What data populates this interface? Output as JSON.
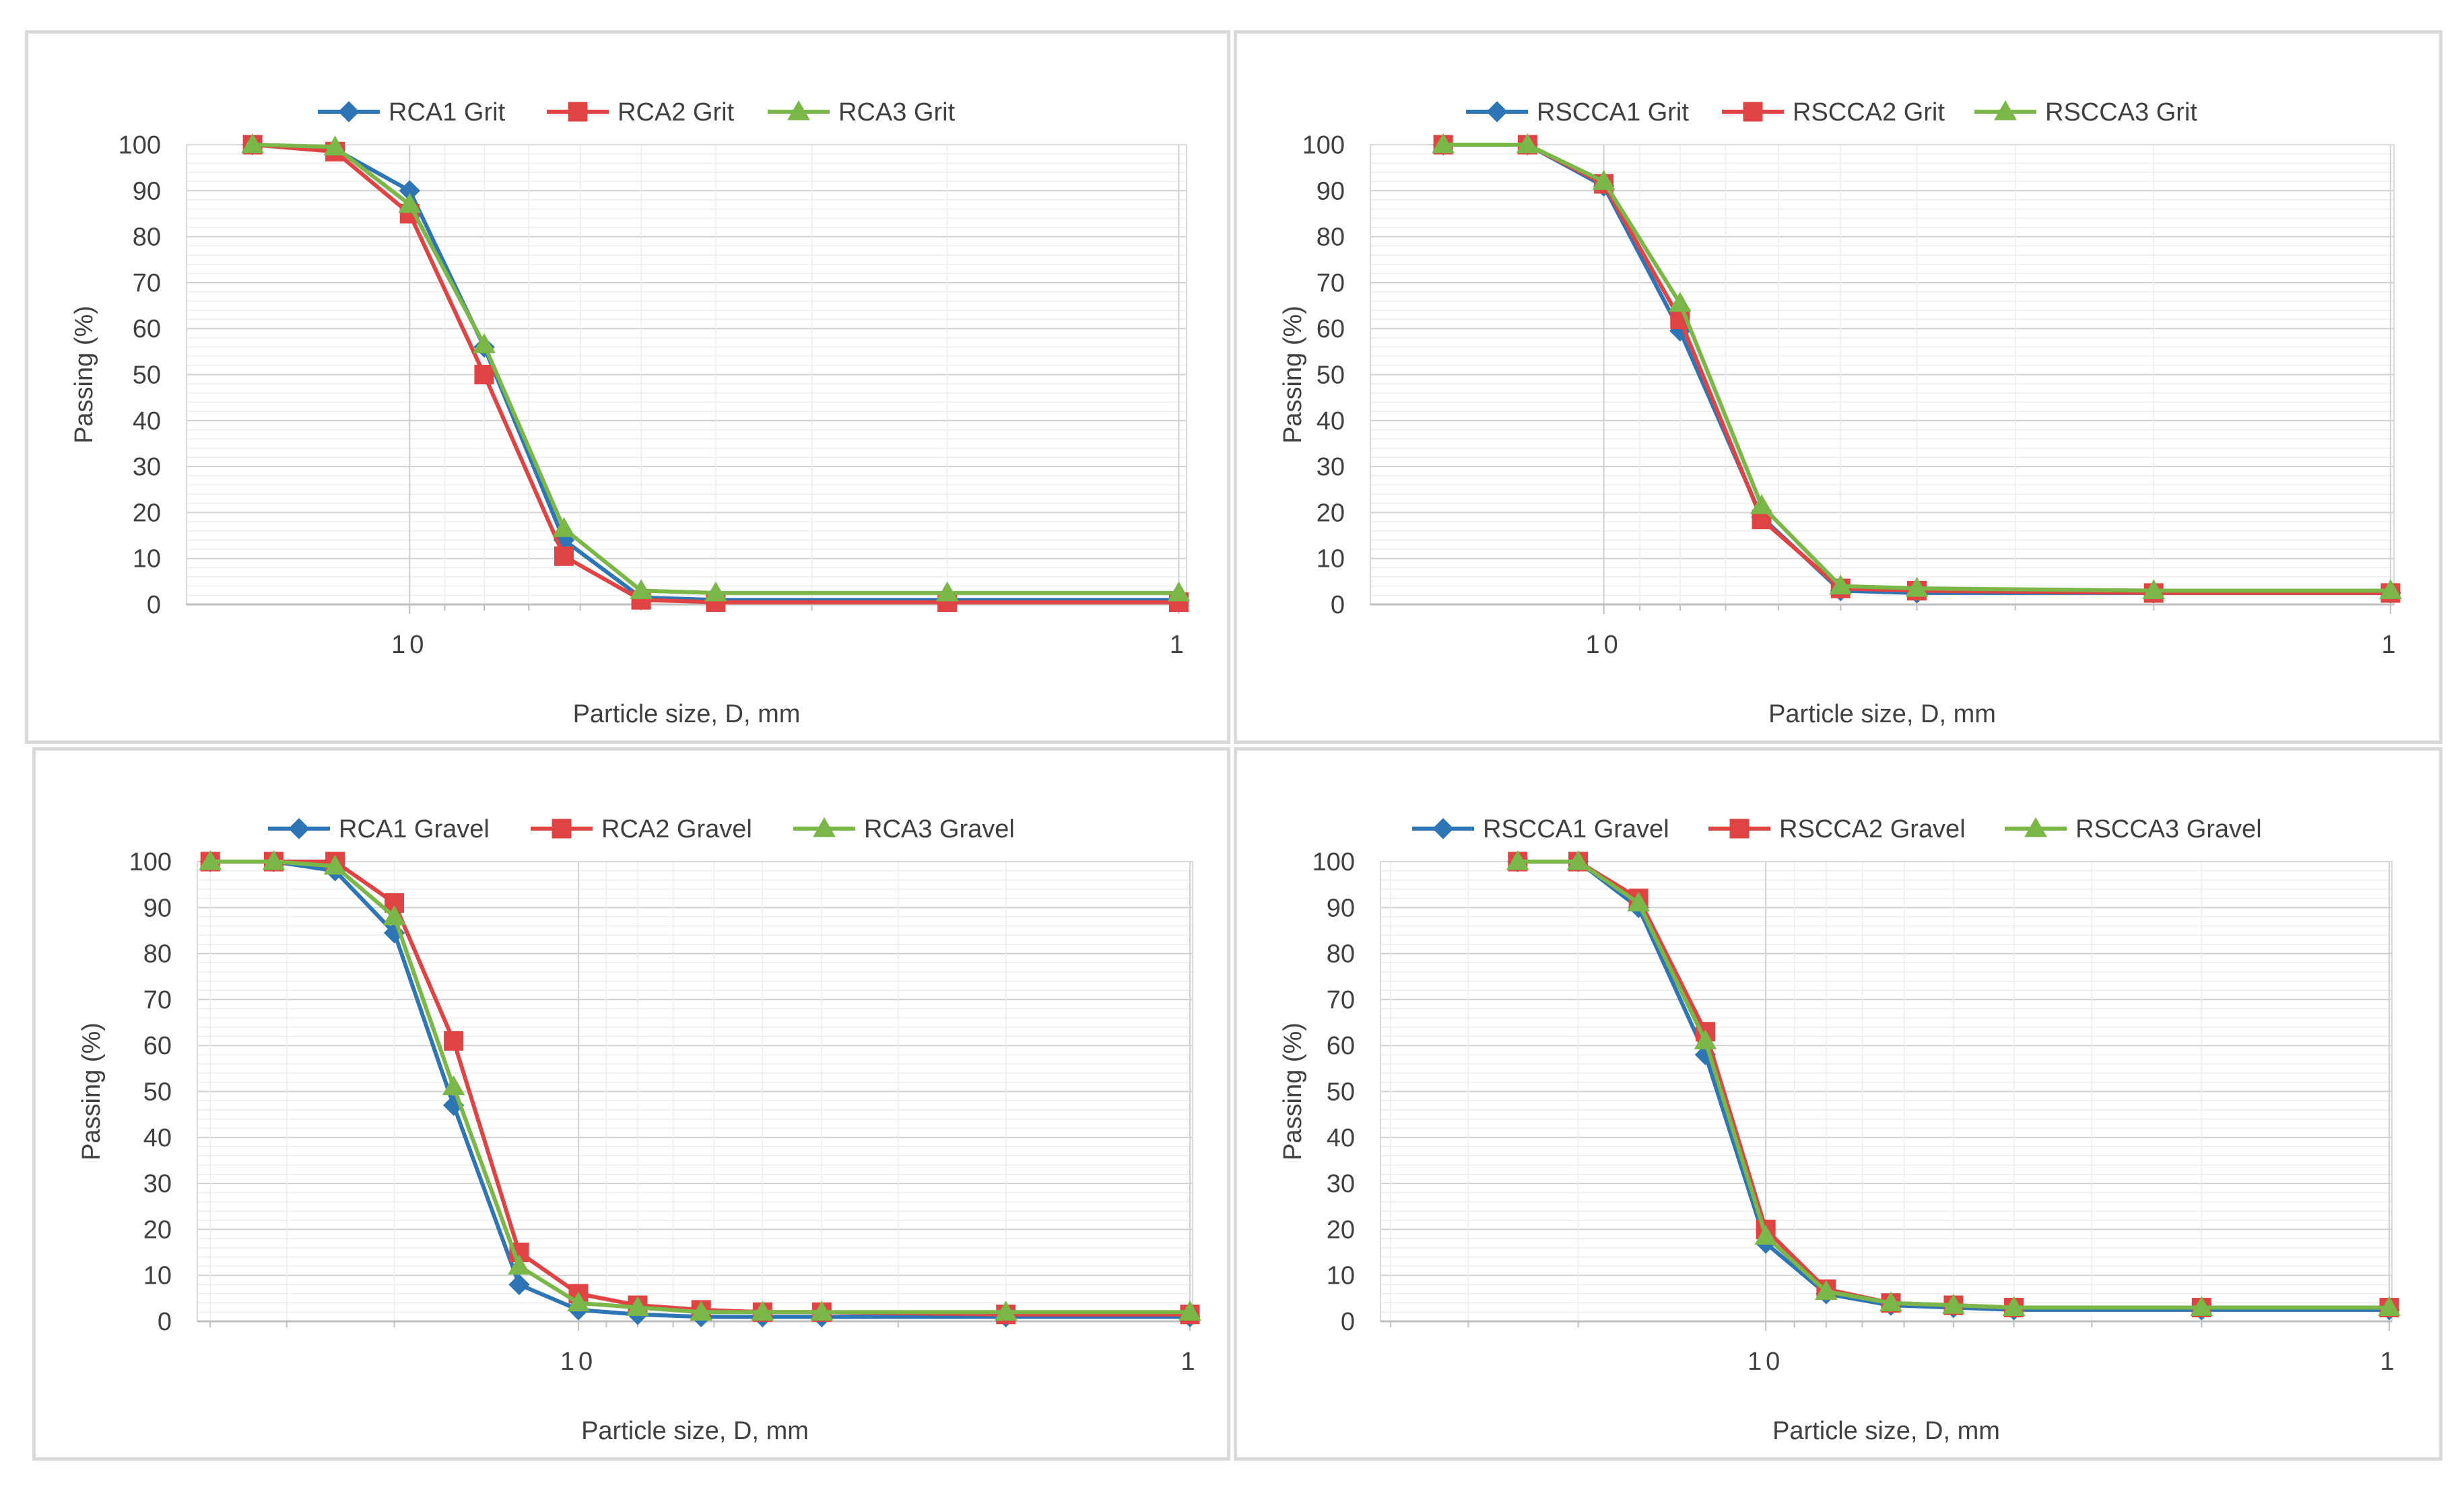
{
  "colors": {
    "series1": "#2E75B6",
    "series2": "#E04343",
    "series3": "#7AB648",
    "grid": "#d9d9d9",
    "axis": "#bfbfbf",
    "text": "#404040"
  },
  "chart_data": [
    {
      "type": "line",
      "xscale": "log",
      "xreversed": true,
      "xlim": [
        0.977,
        19.5
      ],
      "ylim": [
        0,
        100
      ],
      "xlabel": "Particle size, D, mm",
      "ylabel": "Passing (%)",
      "yticks": [
        "0",
        "10",
        "20",
        "30",
        "40",
        "50",
        "60",
        "70",
        "80",
        "90",
        "100"
      ],
      "xticks": [
        {
          "value": 10,
          "label": "10"
        },
        {
          "value": 1,
          "label": "1"
        }
      ],
      "legend_position": "top",
      "series": [
        {
          "name": "RCA1 Grit",
          "marker": "diamond",
          "x": [
            16,
            12.5,
            10,
            8,
            6.3,
            5,
            4,
            2,
            1
          ],
          "y": [
            100,
            99,
            90,
            56,
            14,
            1.5,
            1,
            1,
            1
          ]
        },
        {
          "name": "RCA2 Grit",
          "marker": "square",
          "x": [
            16,
            12.5,
            10,
            8,
            6.3,
            5,
            4,
            2,
            1
          ],
          "y": [
            100,
            98.5,
            85,
            50,
            10.5,
            1,
            0.5,
            0.5,
            0.5
          ]
        },
        {
          "name": "RCA3 Grit",
          "marker": "triangle",
          "x": [
            16,
            12.5,
            10,
            8,
            6.3,
            5,
            4,
            2,
            1
          ],
          "y": [
            100,
            99.5,
            87,
            56.5,
            16.5,
            3,
            2.5,
            2.5,
            2.5
          ]
        }
      ]
    },
    {
      "type": "line",
      "xscale": "log",
      "xreversed": true,
      "xlim": [
        0.99,
        19.8
      ],
      "ylim": [
        0,
        100
      ],
      "xlabel": "Particle size, D, mm",
      "ylabel": "Passing (%)",
      "yticks": [
        "0",
        "10",
        "20",
        "30",
        "40",
        "50",
        "60",
        "70",
        "80",
        "90",
        "100"
      ],
      "xticks": [
        {
          "value": 10,
          "label": "10"
        },
        {
          "value": 1,
          "label": "1"
        }
      ],
      "legend_position": "top",
      "series": [
        {
          "name": "RSCCA1 Grit",
          "marker": "diamond",
          "x": [
            16,
            12.5,
            10,
            8,
            6.3,
            5,
            4,
            2,
            1
          ],
          "y": [
            100,
            100,
            91,
            59.5,
            19,
            3,
            2.5,
            2.5,
            2.5
          ]
        },
        {
          "name": "RSCCA2 Grit",
          "marker": "square",
          "x": [
            16,
            12.5,
            10,
            8,
            6.3,
            5,
            4,
            2,
            1
          ],
          "y": [
            100,
            100,
            91.5,
            62,
            18.5,
            3.5,
            3,
            2.5,
            2.5
          ]
        },
        {
          "name": "RSCCA3 Grit",
          "marker": "triangle",
          "x": [
            16,
            12.5,
            10,
            8,
            6.3,
            5,
            4,
            2,
            1
          ],
          "y": [
            100,
            100,
            92,
            65.5,
            21.5,
            4,
            3.5,
            3,
            3
          ]
        }
      ]
    },
    {
      "type": "line",
      "xscale": "log",
      "xreversed": true,
      "xlim": [
        0.99,
        42
      ],
      "ylim": [
        0,
        100
      ],
      "xlabel": "Particle size, D, mm",
      "ylabel": "Passing (%)",
      "yticks": [
        "0",
        "10",
        "20",
        "30",
        "40",
        "50",
        "60",
        "70",
        "80",
        "90",
        "100"
      ],
      "xticks": [
        {
          "value": 10,
          "label": "10"
        },
        {
          "value": 1,
          "label": "1"
        }
      ],
      "legend_position": "top",
      "series": [
        {
          "name": "RCA1 Gravel",
          "marker": "diamond",
          "x": [
            40,
            31.5,
            25,
            20,
            16,
            12.5,
            10,
            8,
            6.3,
            5,
            4,
            2,
            1
          ],
          "y": [
            100,
            100,
            98,
            84.5,
            47,
            8,
            2.5,
            1.5,
            1,
            1,
            1,
            1,
            1
          ]
        },
        {
          "name": "RCA2 Gravel",
          "marker": "square",
          "x": [
            40,
            31.5,
            25,
            20,
            16,
            12.5,
            10,
            8,
            6.3,
            5,
            4,
            2,
            1
          ],
          "y": [
            100,
            100,
            100,
            91,
            61,
            15,
            6,
            3.5,
            2.5,
            2,
            2,
            1.5,
            1.5
          ]
        },
        {
          "name": "RCA3 Gravel",
          "marker": "triangle",
          "x": [
            40,
            31.5,
            25,
            20,
            16,
            12.5,
            10,
            8,
            6.3,
            5,
            4,
            2,
            1
          ],
          "y": [
            100,
            100,
            99,
            88,
            51,
            12,
            4,
            3,
            2,
            2,
            2,
            2,
            2
          ]
        }
      ]
    },
    {
      "type": "line",
      "xscale": "log",
      "xreversed": true,
      "xlim": [
        0.99,
        41.5
      ],
      "ylim": [
        0,
        100
      ],
      "xlabel": "Particle size, D, mm",
      "ylabel": "Passing (%)",
      "yticks": [
        "0",
        "10",
        "20",
        "30",
        "40",
        "50",
        "60",
        "70",
        "80",
        "90",
        "100"
      ],
      "xticks": [
        {
          "value": 10,
          "label": "10"
        },
        {
          "value": 1,
          "label": "1"
        }
      ],
      "legend_position": "top",
      "series": [
        {
          "name": "RSCCA1 Gravel",
          "marker": "diamond",
          "x": [
            25,
            20,
            16,
            12.5,
            10,
            8,
            6.3,
            5,
            4,
            2,
            1
          ],
          "y": [
            100,
            100,
            90,
            58,
            17,
            6,
            3.5,
            3,
            2.5,
            2.5,
            2.5
          ]
        },
        {
          "name": "RSCCA2 Gravel",
          "marker": "square",
          "x": [
            25,
            20,
            16,
            12.5,
            10,
            8,
            6.3,
            5,
            4,
            2,
            1
          ],
          "y": [
            100,
            100,
            92,
            63,
            20,
            7,
            4,
            3.5,
            3,
            3,
            3
          ]
        },
        {
          "name": "RSCCA3 Gravel",
          "marker": "triangle",
          "x": [
            25,
            20,
            16,
            12.5,
            10,
            8,
            6.3,
            5,
            4,
            2,
            1
          ],
          "y": [
            100,
            100,
            91,
            61,
            18.5,
            6.5,
            4,
            3.5,
            3,
            3,
            3
          ]
        }
      ]
    }
  ]
}
